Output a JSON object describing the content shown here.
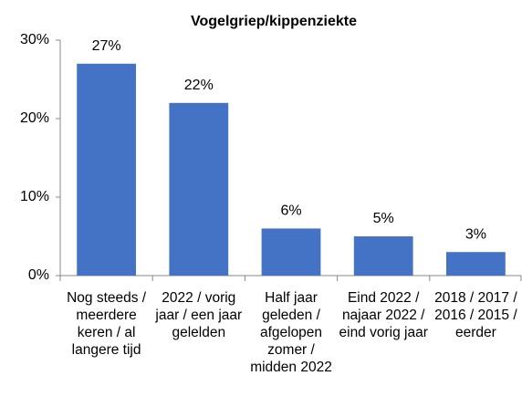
{
  "chart_data": {
    "type": "bar",
    "title": "Vogelgriep/kippenziekte",
    "categories": [
      "Nog steeds / meerdere keren / al langere tijd",
      "2022 / vorig jaar / een jaar gelelden",
      "Half jaar geleden / afgelopen zomer / midden 2022",
      "Eind 2022 / najaar 2022 / eind vorig jaar",
      "2018 / 2017 / 2016 / 2015 / eerder"
    ],
    "values": [
      27,
      22,
      6,
      5,
      3
    ],
    "value_labels": [
      "27%",
      "22%",
      "6%",
      "5%",
      "3%"
    ],
    "color": "#4472c4",
    "ylim": [
      0,
      30
    ],
    "yticks": [
      {
        "value": 0,
        "label": "0%"
      },
      {
        "value": 10,
        "label": "10%"
      },
      {
        "value": 20,
        "label": "20%"
      },
      {
        "value": 30,
        "label": "30%"
      }
    ]
  }
}
